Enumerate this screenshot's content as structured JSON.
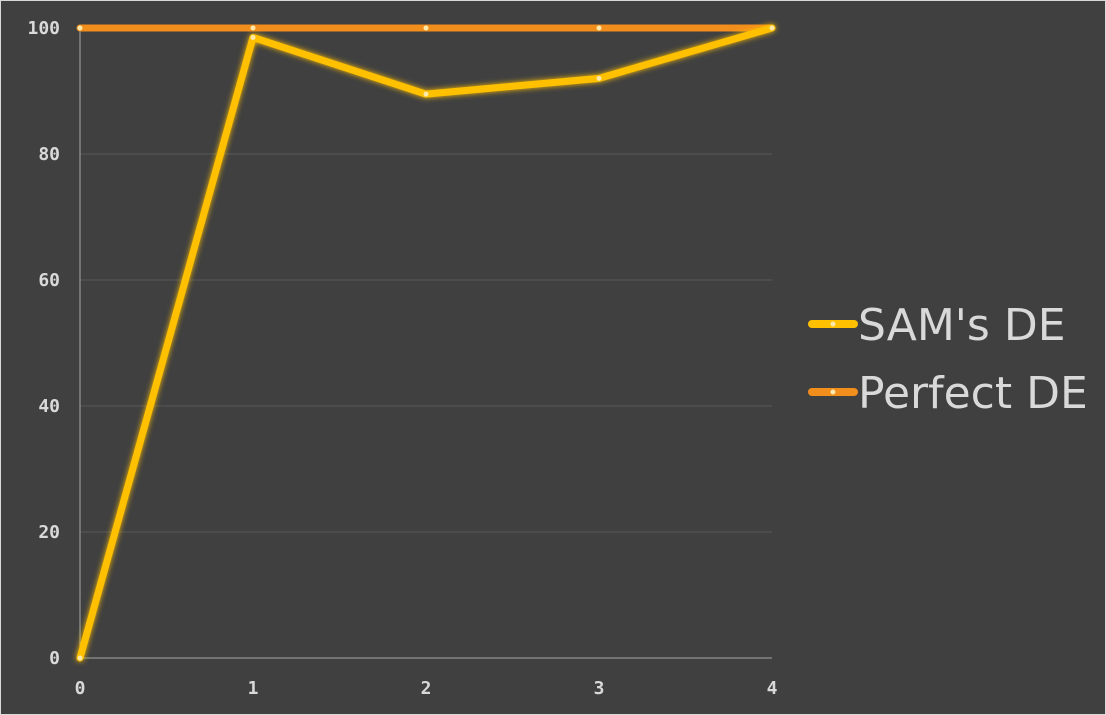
{
  "chart_data": {
    "type": "line",
    "x": [
      0,
      1,
      2,
      3,
      4
    ],
    "ylim": [
      0,
      100
    ],
    "xlim": [
      0,
      4
    ],
    "y_ticks": [
      0,
      20,
      40,
      60,
      80,
      100
    ],
    "x_ticks": [
      0,
      1,
      2,
      3,
      4
    ],
    "grid": true,
    "legend_position": "right",
    "series": [
      {
        "name": "SAM's DE",
        "values": [
          0,
          98.5,
          89.5,
          92,
          100
        ],
        "color": "#ffc000"
      },
      {
        "name": "Perfect DE",
        "values": [
          100,
          100,
          100,
          100,
          100
        ],
        "color": "#f28e1c"
      }
    ]
  },
  "colors": {
    "background": "#404040",
    "grid": "#595959",
    "axis": "#a6a6a6",
    "text": "#d9d9d9"
  }
}
